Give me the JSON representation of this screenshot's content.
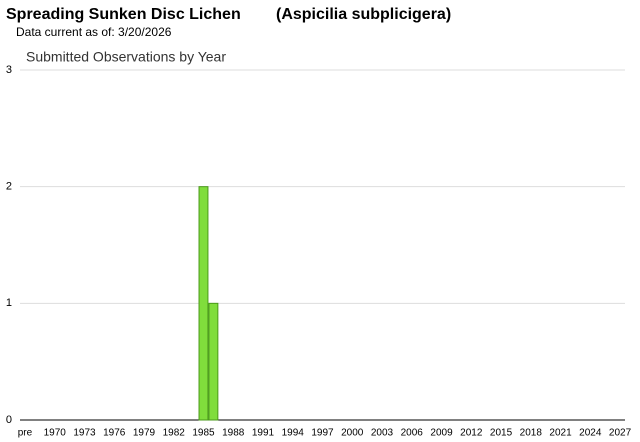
{
  "header": {
    "common_name": "Spreading Sunken Disc Lichen",
    "scientific_name": "(Aspicilia subplicigera)",
    "data_current": "Data current as of: 3/20/2026"
  },
  "chart_data": {
    "type": "bar",
    "title": "Submitted Observations by Year",
    "categories": [
      "pre",
      null,
      null,
      "1970",
      null,
      null,
      "1973",
      null,
      null,
      "1976",
      null,
      null,
      "1979",
      null,
      null,
      "1982",
      null,
      null,
      "1985",
      null,
      null,
      "1988",
      null,
      null,
      "1991",
      null,
      null,
      "1994",
      null,
      null,
      "1997",
      null,
      null,
      "2000",
      null,
      null,
      "2003",
      null,
      null,
      "2006",
      null,
      null,
      "2009",
      null,
      null,
      "2012",
      null,
      null,
      "2015",
      null,
      null,
      "2018",
      null,
      null,
      "2021",
      null,
      null,
      "2024",
      null,
      null,
      "2027"
    ],
    "values": [
      0,
      0,
      0,
      0,
      0,
      0,
      0,
      0,
      0,
      0,
      0,
      0,
      0,
      0,
      0,
      0,
      0,
      0,
      2,
      1,
      0,
      0,
      0,
      0,
      0,
      0,
      0,
      0,
      0,
      0,
      0,
      0,
      0,
      0,
      0,
      0,
      0,
      0,
      0,
      0,
      0,
      0,
      0,
      0,
      0,
      0,
      0,
      0,
      0,
      0,
      0,
      0,
      0,
      0,
      0,
      0,
      0,
      0,
      0,
      0,
      0
    ],
    "color": "#80dd3c",
    "ylim": [
      0,
      3
    ],
    "yticks": [
      0,
      1,
      2,
      3
    ],
    "grid": true
  }
}
